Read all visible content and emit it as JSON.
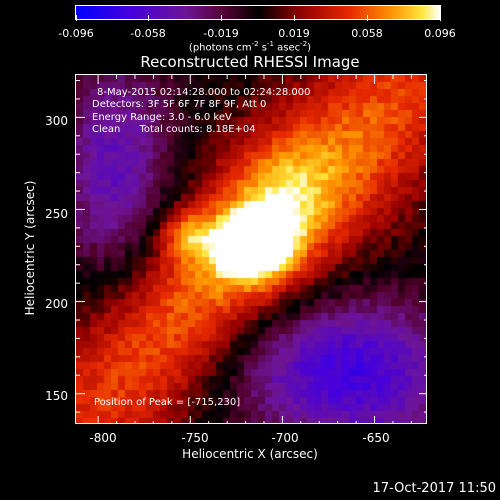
{
  "colorbar": {
    "tick_labels": [
      "-0.096",
      "-0.058",
      "-0.019",
      "0.019",
      "0.058",
      "0.096"
    ],
    "units_prefix": "(photons cm",
    "units_exp1": "-2",
    "units_mid1": " s",
    "units_exp2": "-1",
    "units_mid2": " asec",
    "units_exp3": "-2",
    "units_suffix": ")"
  },
  "title": "Reconstructed RHESSI Image",
  "info": {
    "time_range": "8-May-2015 02:14:28.000 to 02:24:28.000",
    "detectors": "Detectors: 3F 5F 6F 7F 8F 9F, Att 0",
    "energy": "Energy Range: 3.0 - 6.0 keV",
    "clean": "Clean      Total counts: 8.18E+04",
    "peak": "Position of Peak = [-715,230]"
  },
  "axes": {
    "xlabel": "Heliocentric X (arcsec)",
    "ylabel": "Heliocentric Y (arcsec)",
    "x_ticks": [
      "-800",
      "-750",
      "-700",
      "-650"
    ],
    "y_ticks": [
      "300",
      "250",
      "200",
      "150"
    ]
  },
  "footer": {
    "timestamp": "17-Oct-2017 11:50"
  },
  "chart_data": {
    "type": "heatmap",
    "title": "Reconstructed RHESSI Image",
    "xlabel": "Heliocentric X (arcsec)",
    "ylabel": "Heliocentric Y (arcsec)",
    "xlim": [
      -812,
      -621
    ],
    "ylim": [
      133,
      323
    ],
    "x_ticks": [
      -800,
      -750,
      -700,
      -650
    ],
    "y_ticks": [
      300,
      250,
      200,
      150
    ],
    "colorbar_range": [
      -0.096,
      0.096
    ],
    "peak": [
      -715,
      230
    ],
    "colormap": "blue-purple-red-yellow-white"
  }
}
